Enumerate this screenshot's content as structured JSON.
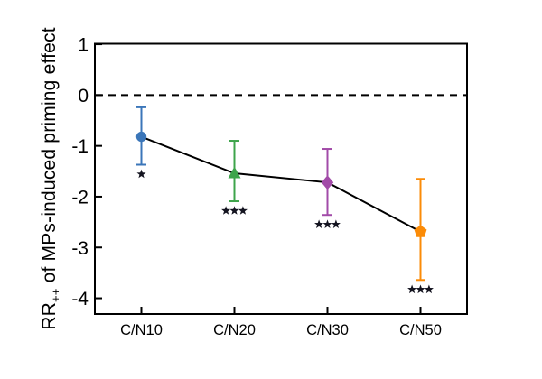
{
  "chart_data": {
    "type": "scatter",
    "title": "",
    "categories": [
      "C/N10",
      "C/N20",
      "C/N30",
      "C/N50"
    ],
    "series": [
      {
        "name": "MPs-induced priming effect",
        "means": [
          -0.82,
          -1.54,
          -1.72,
          -2.69
        ],
        "ci_upper": [
          -0.24,
          -0.9,
          -1.06,
          -1.65
        ],
        "ci_lower": [
          -1.37,
          -2.09,
          -2.36,
          -3.64
        ],
        "significance": [
          "*",
          "***",
          "***",
          "***"
        ],
        "marker_shapes": [
          "circle",
          "triangle-up",
          "diamond",
          "pentagon"
        ],
        "marker_colors": [
          "#3B76B9",
          "#3EA44B",
          "#A24BA8",
          "#FB8B07"
        ]
      }
    ],
    "line_color": "#000000",
    "zero_line": {
      "value": 0,
      "style": "dashed",
      "color": "#000000"
    },
    "ylabel_prefix": "RR",
    "ylabel_sub": "++",
    "ylabel_rest": " of MPs-induced priming effect",
    "xlabel": "",
    "yticks": [
      1,
      0,
      -1,
      -2,
      -3,
      -4
    ],
    "ylim": [
      1.01,
      -4.31
    ],
    "grid": "off",
    "legend": "none",
    "axis_color": "#000000",
    "significance_color": "#141420",
    "tick_label_color": "#000000"
  }
}
